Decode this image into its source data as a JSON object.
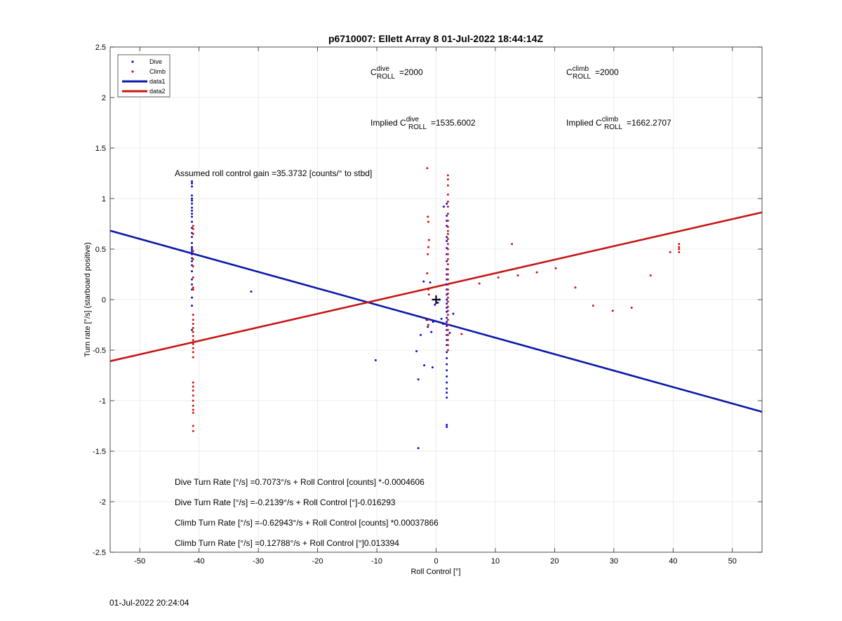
{
  "footer_timestamp": "01-Jul-2022 20:24:04",
  "chart_data": {
    "type": "scatter",
    "title": "p6710007: Ellett Array 8 01-Jul-2022 18:44:14Z",
    "xlabel": "Roll Control [°]",
    "ylabel": "Turn rate [°/s] (starboard positive)",
    "xlim": [
      -55,
      55
    ],
    "ylim": [
      -2.5,
      2.5
    ],
    "xticks": [
      -50,
      -40,
      -30,
      -20,
      -10,
      0,
      10,
      20,
      30,
      40,
      50
    ],
    "yticks": [
      -2.5,
      -2,
      -1.5,
      -1,
      -0.5,
      0,
      0.5,
      1,
      1.5,
      2,
      2.5
    ],
    "grid": true,
    "legend_position": "top-left",
    "legend": [
      {
        "label": "Dive",
        "kind": "point",
        "color": "#1010cc"
      },
      {
        "label": "Climb",
        "kind": "point",
        "color": "#dd1111"
      },
      {
        "label": "data1",
        "kind": "line",
        "color": "#0a1aa8"
      },
      {
        "label": "data2",
        "kind": "line",
        "color": "#c81414"
      }
    ],
    "lines": [
      {
        "name": "data1",
        "color": "#0a1aa8",
        "x": [
          -55,
          55
        ],
        "y": [
          0.682,
          -1.11
        ]
      },
      {
        "name": "data2",
        "color": "#c81414",
        "x": [
          -55,
          55
        ],
        "y": [
          -0.609,
          0.864
        ]
      }
    ],
    "marker": {
      "label": "+",
      "x": 0,
      "y": 0
    },
    "annotations": {
      "c_roll_dive": {
        "prefix": "C",
        "sup": "dive",
        "sub": "ROLL",
        "value": "=2000"
      },
      "c_roll_climb": {
        "prefix": "C",
        "sup": "climb",
        "sub": "ROLL",
        "value": "=2000"
      },
      "implied_dive": {
        "prefix": "Implied C",
        "sup": "dive",
        "sub": "ROLL",
        "value": "=1535.6002"
      },
      "implied_climb": {
        "prefix": "Implied C",
        "sup": "climb",
        "sub": "ROLL",
        "value": "=1662.2707"
      },
      "gain": "Assumed roll control gain =35.3732 [counts/° to stbd]",
      "eq1": "Dive Turn Rate [°/s] =0.7073°/s + Roll Control [counts] *-0.0004606",
      "eq2": "Dive Turn Rate [°/s] =-0.2139°/s + Roll Control [°]-0.016293",
      "eq3": "Climb Turn Rate [°/s] =-0.62943°/s + Roll Control [counts] *0.00037866",
      "eq4": "Climb Turn Rate [°/s] =0.12788°/s + Roll Control [°]0.013394"
    },
    "series": [
      {
        "name": "Dive",
        "color": "#1010cc",
        "points": [
          [
            -41.2,
            1.17
          ],
          [
            -41.2,
            1.15
          ],
          [
            -41.2,
            1.12
          ],
          [
            -41.2,
            1.03
          ],
          [
            -41.2,
            1.0
          ],
          [
            -41.2,
            0.98
          ],
          [
            -41.2,
            0.95
          ],
          [
            -41.2,
            0.91
          ],
          [
            -41.2,
            0.88
          ],
          [
            -41.2,
            0.85
          ],
          [
            -41.2,
            0.82
          ],
          [
            -41.2,
            0.77
          ],
          [
            -41.2,
            0.71
          ],
          [
            -41.2,
            0.66
          ],
          [
            -41.2,
            0.62
          ],
          [
            -41.2,
            0.56
          ],
          [
            -41.2,
            0.52
          ],
          [
            -41.2,
            0.5
          ],
          [
            -41.2,
            0.48
          ],
          [
            -41.2,
            0.46
          ],
          [
            -41.2,
            0.45
          ],
          [
            -41.2,
            0.41
          ],
          [
            -41.2,
            0.38
          ],
          [
            -41.2,
            0.34
          ],
          [
            -41.2,
            0.28
          ],
          [
            -41.2,
            0.2
          ],
          [
            -41.2,
            0.15
          ],
          [
            -41.2,
            0.1
          ],
          [
            -41.2,
            0.02
          ],
          [
            -41.2,
            -0.06
          ],
          [
            -41.2,
            -0.3
          ],
          [
            -31.2,
            0.08
          ],
          [
            -10.2,
            -0.6
          ],
          [
            -3.0,
            -1.47
          ],
          [
            -3.0,
            -0.79
          ],
          [
            -3.3,
            -0.51
          ],
          [
            -2.6,
            -0.35
          ],
          [
            -2.1,
            0.18
          ],
          [
            -2.0,
            -0.65
          ],
          [
            -1.6,
            -0.2
          ],
          [
            -1.4,
            -0.27
          ],
          [
            -1.0,
            0.17
          ],
          [
            -0.8,
            -0.32
          ],
          [
            -0.6,
            -0.67
          ],
          [
            -0.5,
            -0.22
          ],
          [
            -0.2,
            -0.05
          ],
          [
            0.3,
            -0.03
          ],
          [
            0.6,
            0.0
          ],
          [
            0.9,
            -0.19
          ],
          [
            1.2,
            -0.24
          ],
          [
            1.3,
            0.92
          ],
          [
            2.3,
            -0.33
          ],
          [
            2.9,
            -0.14
          ],
          [
            1.8,
            0.95
          ],
          [
            1.8,
            0.83
          ],
          [
            1.8,
            0.78
          ],
          [
            1.8,
            0.73
          ],
          [
            1.8,
            0.62
          ],
          [
            1.8,
            0.58
          ],
          [
            1.8,
            0.51
          ],
          [
            1.8,
            0.45
          ],
          [
            1.8,
            0.38
          ],
          [
            1.8,
            0.3
          ],
          [
            1.8,
            0.25
          ],
          [
            1.8,
            0.2
          ],
          [
            1.8,
            0.15
          ],
          [
            1.8,
            0.1
          ],
          [
            1.8,
            0.05
          ],
          [
            1.8,
            0.0
          ],
          [
            1.8,
            -0.04
          ],
          [
            1.8,
            -0.08
          ],
          [
            1.8,
            -0.12
          ],
          [
            1.8,
            -0.18
          ],
          [
            1.8,
            -0.22
          ],
          [
            1.8,
            -0.26
          ],
          [
            1.8,
            -0.3
          ],
          [
            1.8,
            -0.35
          ],
          [
            1.8,
            -0.4
          ],
          [
            1.8,
            -0.45
          ],
          [
            1.8,
            -0.52
          ],
          [
            1.8,
            -0.58
          ],
          [
            1.8,
            -0.64
          ],
          [
            1.8,
            -0.7
          ],
          [
            1.8,
            -0.76
          ],
          [
            1.8,
            -0.82
          ],
          [
            1.8,
            -0.88
          ],
          [
            1.8,
            -0.92
          ],
          [
            1.8,
            -0.97
          ],
          [
            1.8,
            -1.24
          ],
          [
            1.8,
            -1.26
          ]
        ]
      },
      {
        "name": "Climb",
        "color": "#dd1111",
        "points": [
          [
            -41.0,
            0.73
          ],
          [
            -41.0,
            0.7
          ],
          [
            -41.0,
            0.65
          ],
          [
            -41.0,
            0.48
          ],
          [
            -41.0,
            0.4
          ],
          [
            -41.0,
            0.33
          ],
          [
            -41.0,
            0.22
          ],
          [
            -41.0,
            0.12
          ],
          [
            -41.0,
            0.1
          ],
          [
            -41.0,
            -0.15
          ],
          [
            -41.0,
            -0.2
          ],
          [
            -41.0,
            -0.24
          ],
          [
            -41.0,
            -0.28
          ],
          [
            -41.0,
            -0.32
          ],
          [
            -41.0,
            -0.36
          ],
          [
            -41.0,
            -0.4
          ],
          [
            -41.0,
            -0.44
          ],
          [
            -41.0,
            -0.48
          ],
          [
            -41.0,
            -0.52
          ],
          [
            -41.0,
            -0.57
          ],
          [
            -41.0,
            -0.82
          ],
          [
            -41.0,
            -0.86
          ],
          [
            -41.0,
            -0.9
          ],
          [
            -41.0,
            -0.95
          ],
          [
            -41.0,
            -1.0
          ],
          [
            -41.0,
            -1.05
          ],
          [
            -41.0,
            -1.09
          ],
          [
            -41.0,
            -1.12
          ],
          [
            -41.0,
            -1.25
          ],
          [
            -41.0,
            -1.3
          ],
          [
            -1.5,
            1.3
          ],
          [
            -1.4,
            0.82
          ],
          [
            -1.3,
            0.77
          ],
          [
            -1.2,
            0.59
          ],
          [
            -1.3,
            0.52
          ],
          [
            -1.4,
            0.45
          ],
          [
            -1.5,
            0.26
          ],
          [
            -1.3,
            0.1
          ],
          [
            -1.2,
            0.05
          ],
          [
            -1.4,
            -0.2
          ],
          [
            -1.3,
            -0.25
          ],
          [
            2.0,
            1.23
          ],
          [
            2.0,
            1.19
          ],
          [
            2.0,
            1.13
          ],
          [
            2.0,
            1.04
          ],
          [
            2.0,
            0.97
          ],
          [
            2.0,
            0.92
          ],
          [
            2.0,
            0.85
          ],
          [
            2.0,
            0.78
          ],
          [
            2.0,
            0.72
          ],
          [
            2.0,
            0.68
          ],
          [
            2.0,
            0.65
          ],
          [
            2.0,
            0.6
          ],
          [
            2.0,
            0.55
          ],
          [
            2.0,
            0.5
          ],
          [
            2.0,
            0.45
          ],
          [
            2.0,
            0.4
          ],
          [
            2.0,
            0.35
          ],
          [
            2.0,
            0.3
          ],
          [
            2.0,
            0.25
          ],
          [
            2.0,
            0.2
          ],
          [
            2.0,
            0.15
          ],
          [
            2.0,
            0.1
          ],
          [
            2.0,
            0.06
          ],
          [
            2.0,
            0.02
          ],
          [
            2.0,
            -0.02
          ],
          [
            2.0,
            -0.07
          ],
          [
            2.0,
            -0.11
          ],
          [
            2.0,
            -0.15
          ],
          [
            2.0,
            -0.2
          ],
          [
            2.0,
            -0.25
          ],
          [
            2.0,
            -0.3
          ],
          [
            2.0,
            -0.35
          ],
          [
            2.0,
            -0.4
          ],
          [
            2.0,
            -0.45
          ],
          [
            2.0,
            -0.5
          ],
          [
            4.3,
            -0.34
          ],
          [
            7.3,
            0.16
          ],
          [
            10.5,
            0.22
          ],
          [
            12.8,
            0.55
          ],
          [
            13.8,
            0.24
          ],
          [
            17.0,
            0.27
          ],
          [
            20.2,
            0.31
          ],
          [
            23.5,
            0.12
          ],
          [
            26.5,
            -0.06
          ],
          [
            29.8,
            -0.11
          ],
          [
            33.0,
            -0.08
          ],
          [
            36.2,
            0.24
          ],
          [
            39.5,
            0.47
          ],
          [
            41.0,
            0.55
          ],
          [
            41.0,
            0.52
          ],
          [
            41.0,
            0.5
          ],
          [
            41.0,
            0.47
          ]
        ]
      }
    ]
  }
}
